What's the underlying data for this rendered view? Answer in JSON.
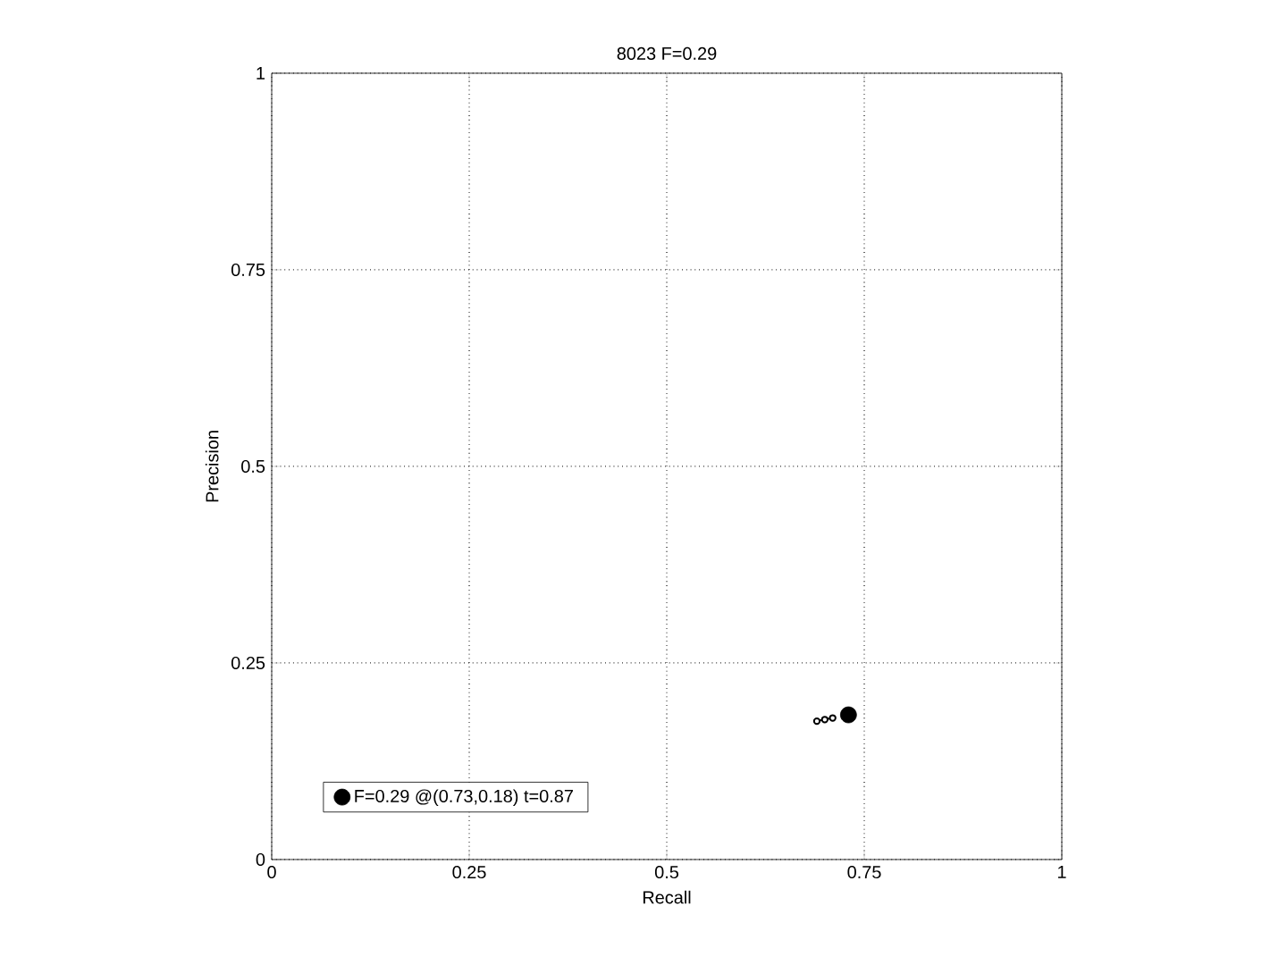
{
  "chart_data": {
    "type": "line",
    "title": "8023 F=0.29",
    "xlabel": "Recall",
    "ylabel": "Precision",
    "xlim": [
      0,
      1
    ],
    "ylim": [
      0,
      1
    ],
    "xticks": [
      0,
      0.25,
      0.5,
      0.75,
      1
    ],
    "yticks": [
      0,
      0.25,
      0.5,
      0.75,
      1
    ],
    "grid": true,
    "legend": "bottom left",
    "series": [
      {
        "color": "#000000",
        "marker": "circle",
        "x": [
          0.69,
          0.7,
          0.71
        ],
        "values": [
          0.176,
          0.178,
          0.18
        ]
      },
      {
        "type": "scatter",
        "name": "F=0.29 @(0.73,0.18) t=0.87",
        "color": "#000000",
        "marker": "circle",
        "x": [
          0.73
        ],
        "values": [
          0.184
        ]
      }
    ]
  }
}
